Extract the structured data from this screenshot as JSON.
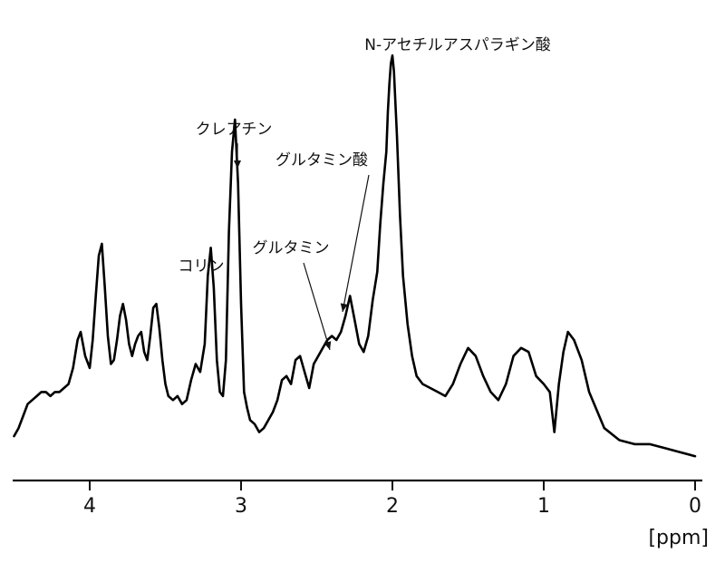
{
  "chart_data": {
    "type": "line",
    "title": "",
    "xlabel": "[ppm]",
    "ylabel": "",
    "x_reversed": true,
    "xlim": [
      4.5,
      0
    ],
    "ylim": [
      0,
      100
    ],
    "grid": false,
    "legend": "none",
    "x_ticks": [
      {
        "value": 4,
        "label": "4"
      },
      {
        "value": 3,
        "label": "3"
      },
      {
        "value": 2,
        "label": "2"
      },
      {
        "value": 1,
        "label": "1"
      },
      {
        "value": 0,
        "label": "0"
      }
    ],
    "series": [
      {
        "x": [
          4.5,
          4.47,
          4.44,
          4.41,
          4.38,
          4.35,
          4.32,
          4.29,
          4.26,
          4.23,
          4.2,
          4.17,
          4.14,
          4.11,
          4.08,
          4.06,
          4.03,
          4.0,
          3.98,
          3.96,
          3.94,
          3.92,
          3.9,
          3.88,
          3.86,
          3.84,
          3.82,
          3.8,
          3.78,
          3.76,
          3.74,
          3.72,
          3.7,
          3.68,
          3.66,
          3.64,
          3.62,
          3.6,
          3.58,
          3.56,
          3.54,
          3.52,
          3.5,
          3.48,
          3.45,
          3.42,
          3.39,
          3.36,
          3.33,
          3.3,
          3.27,
          3.24,
          3.22,
          3.2,
          3.18,
          3.16,
          3.14,
          3.12,
          3.1,
          3.08,
          3.06,
          3.04,
          3.02,
          3.0,
          2.98,
          2.96,
          2.94,
          2.91,
          2.88,
          2.85,
          2.82,
          2.79,
          2.76,
          2.73,
          2.7,
          2.67,
          2.64,
          2.61,
          2.58,
          2.55,
          2.52,
          2.49,
          2.46,
          2.43,
          2.4,
          2.37,
          2.34,
          2.31,
          2.28,
          2.25,
          2.22,
          2.19,
          2.16,
          2.13,
          2.1,
          2.08,
          2.06,
          2.04,
          2.03,
          2.02,
          2.01,
          2.0,
          1.99,
          1.97,
          1.95,
          1.93,
          1.9,
          1.87,
          1.84,
          1.8,
          1.75,
          1.7,
          1.65,
          1.6,
          1.55,
          1.5,
          1.45,
          1.4,
          1.35,
          1.3,
          1.25,
          1.2,
          1.15,
          1.1,
          1.05,
          1.0,
          0.96,
          0.93,
          0.9,
          0.87,
          0.84,
          0.8,
          0.75,
          0.7,
          0.6,
          0.5,
          0.4,
          0.3,
          0.2,
          0.1,
          0.0
        ],
        "y": [
          7,
          9,
          12,
          15,
          16,
          17,
          18,
          18,
          17,
          18,
          18,
          19,
          20,
          24,
          31,
          33,
          27,
          24,
          31,
          42,
          52,
          55,
          44,
          32,
          25,
          26,
          31,
          37,
          40,
          36,
          30,
          27,
          30,
          32,
          33,
          28,
          26,
          32,
          39,
          40,
          34,
          26,
          20,
          17,
          16,
          17,
          15,
          16,
          21,
          25,
          23,
          30,
          47,
          54,
          44,
          26,
          18,
          17,
          26,
          58,
          78,
          86,
          70,
          40,
          18,
          14,
          11,
          10,
          8,
          9,
          11,
          13,
          16,
          21,
          22,
          20,
          26,
          27,
          23,
          19,
          25,
          27,
          29,
          31,
          32,
          31,
          33,
          37,
          42,
          36,
          30,
          28,
          32,
          41,
          48,
          60,
          70,
          78,
          88,
          95,
          100,
          102,
          98,
          82,
          62,
          47,
          35,
          27,
          22,
          20,
          19,
          18,
          17,
          20,
          25,
          29,
          27,
          22,
          18,
          16,
          20,
          27,
          29,
          28,
          22,
          20,
          18,
          8,
          20,
          28,
          33,
          31,
          26,
          18,
          9,
          6,
          5,
          5,
          4,
          3,
          2
        ]
      }
    ],
    "annotations": [
      {
        "label": "N-アセチルアスパラギン酸",
        "ppm": 2.0
      },
      {
        "label": "クレアチン",
        "ppm": 3.02
      },
      {
        "label": "グルタミン酸",
        "ppm": 2.33
      },
      {
        "label": "コリン",
        "ppm": 3.2
      },
      {
        "label": "グルタミン",
        "ppm": 2.4
      }
    ]
  }
}
